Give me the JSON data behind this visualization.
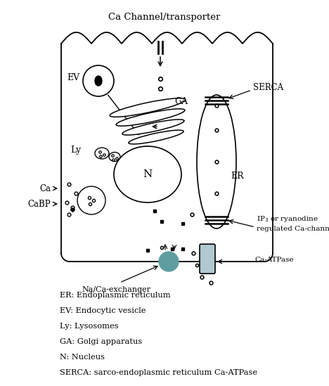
{
  "title": "Ca Channel/transporter",
  "legend_lines": [
    "ER: Endoplasmic reticulum",
    "EV: Endocytic vesicle",
    "Ly: Lysosomes",
    "GA: Golgi apparatus",
    "N: Nucleus",
    "SERCA: sarco-endoplasmic reticulum Ca-ATPase"
  ],
  "bg_color": "#ffffff",
  "lc": "#000000",
  "teal_color": "#5f9ea0",
  "caatpase_color": "#b0c8d0"
}
